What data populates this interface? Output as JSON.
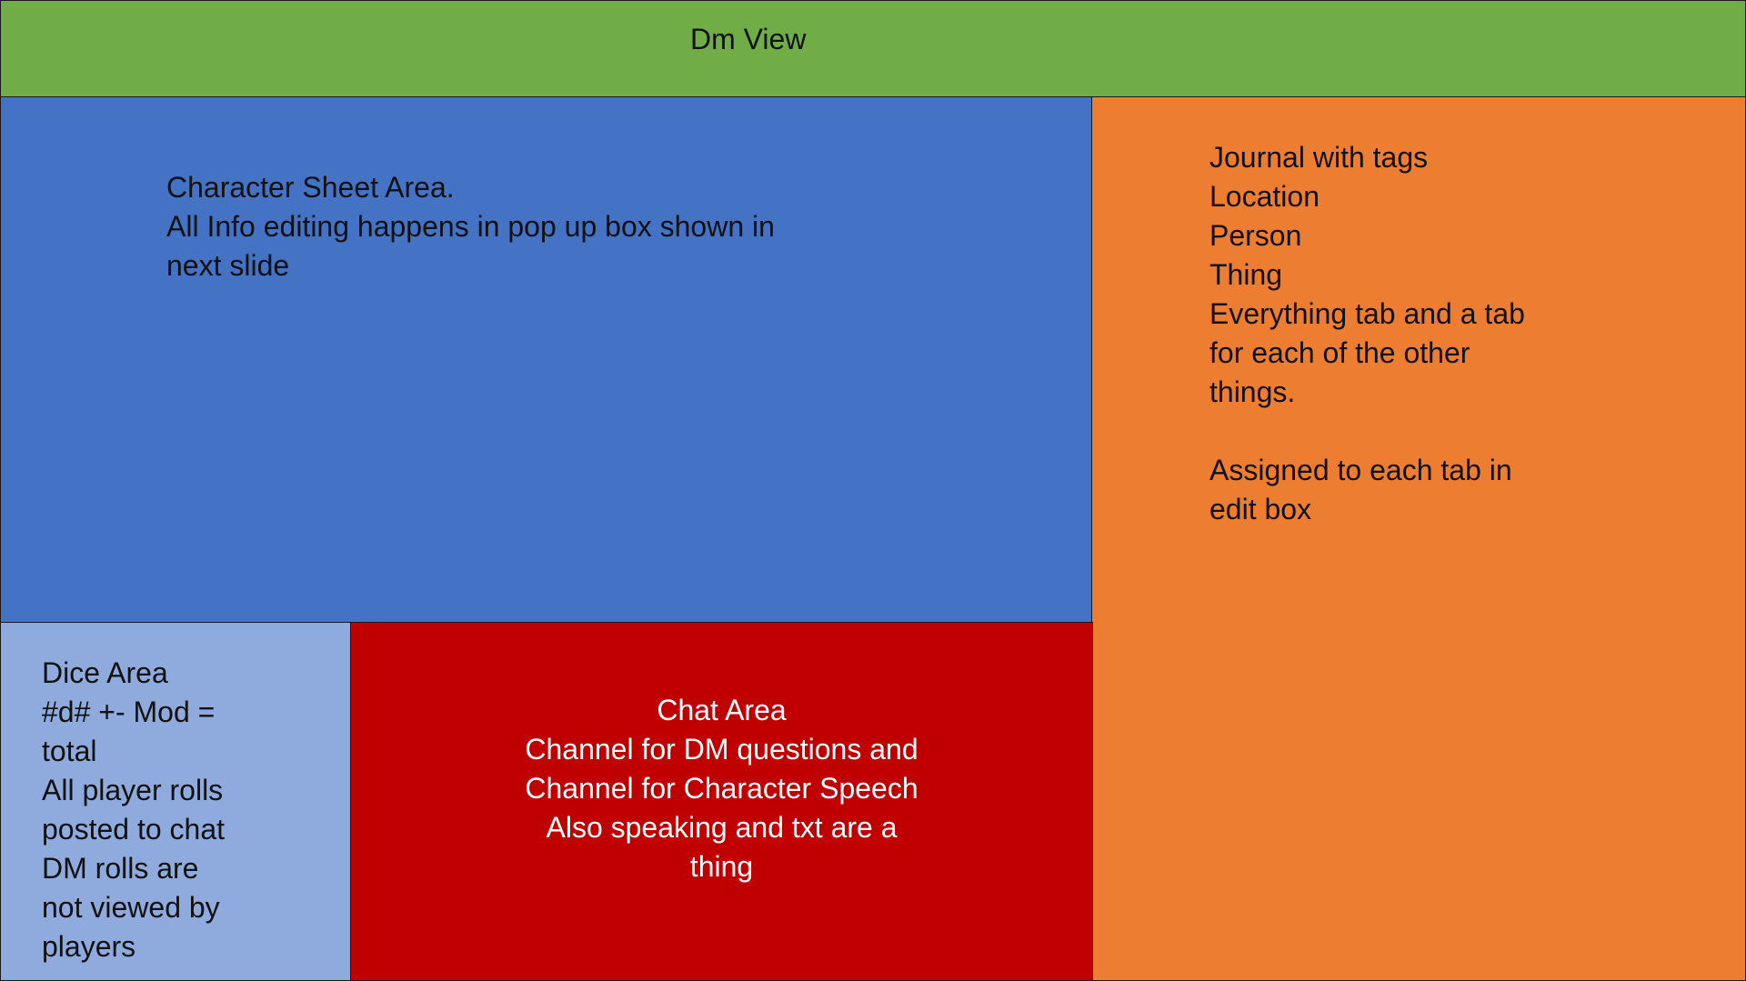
{
  "header": {
    "title": "Dm View"
  },
  "character_sheet": {
    "lines": [
      "Character Sheet Area.",
      "All Info editing happens in pop up box shown in",
      "next slide"
    ]
  },
  "journal": {
    "lines": [
      "Journal with tags",
      "Location",
      "Person",
      "Thing",
      "Everything tab and a tab",
      "for each of the other",
      "things.",
      "",
      "Assigned to each tab in",
      "edit box"
    ]
  },
  "dice": {
    "lines": [
      "Dice Area",
      "#d# +- Mod =",
      "total",
      "All player rolls",
      "posted to chat",
      "DM rolls are",
      "not viewed by",
      "players"
    ]
  },
  "chat": {
    "lines": [
      "Chat Area",
      "Channel for DM questions and",
      "Channel for Character Speech",
      "Also speaking and txt are a",
      "thing"
    ]
  },
  "colors": {
    "header": "#70ad47",
    "character_sheet": "#4472c4",
    "journal": "#ed7d31",
    "dice": "#8faadc",
    "chat": "#c00000"
  }
}
